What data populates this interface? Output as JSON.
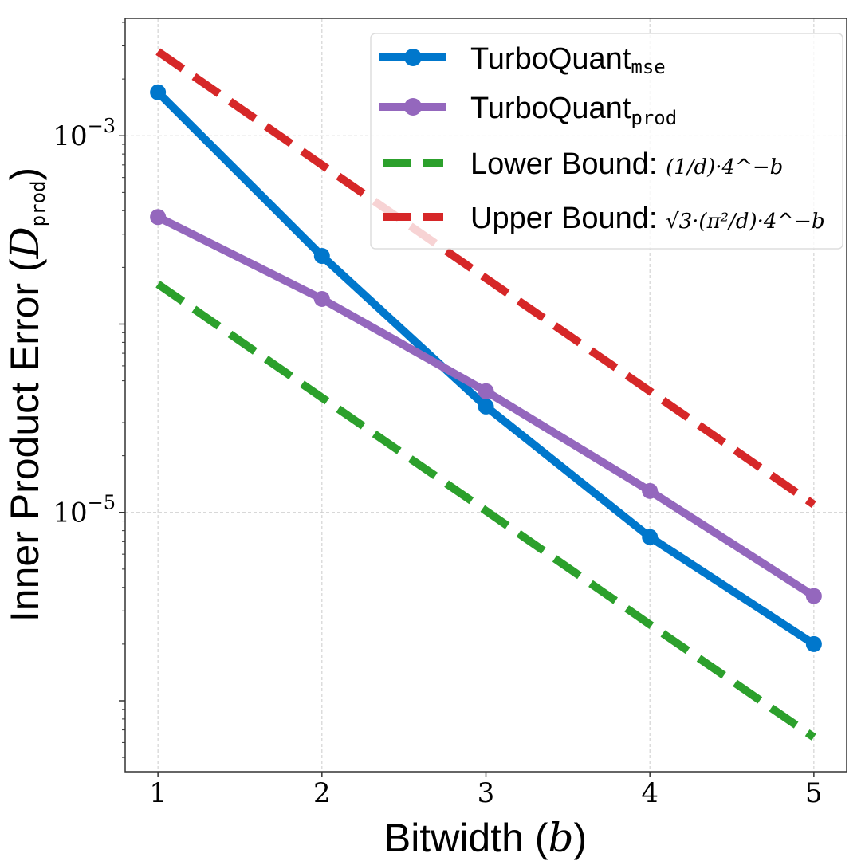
{
  "chart_data": {
    "type": "line",
    "title": "",
    "xlabel": "Bitwidth (b)",
    "xlabel_text": "Bitwidth (",
    "xlabel_var": "b",
    "ylabel_text": "Inner Product Error (",
    "ylabel_var": "D",
    "ylabel_sub": "prod",
    "x": [
      1,
      2,
      3,
      4,
      5
    ],
    "xlim": [
      0.8,
      5.2
    ],
    "ylim": [
      4.2e-07,
      0.0042
    ],
    "yscale": "log",
    "grid": true,
    "xticks": [
      "1",
      "2",
      "3",
      "4",
      "5"
    ],
    "yticks": [
      {
        "value": 0.001,
        "base": "10",
        "exp": "−3"
      },
      {
        "value": 1e-05,
        "base": "10",
        "exp": "−5"
      }
    ],
    "legend_position": "top-right",
    "series": [
      {
        "name": "TurboQuant",
        "sub": "mse",
        "color": "#0077cc",
        "style": "solid",
        "marker": "circle",
        "values": [
          0.0017,
          0.00023,
          3.65e-05,
          7.4e-06,
          2e-06
        ]
      },
      {
        "name": "TurboQuant",
        "sub": "prod",
        "color": "#9467bd",
        "style": "solid",
        "marker": "circle",
        "values": [
          0.00037,
          0.000136,
          4.4e-05,
          1.3e-05,
          3.6e-06
        ]
      },
      {
        "name": "Lower Bound: ",
        "formula": "(1/d)·4^−b",
        "color": "#2ca02c",
        "style": "dashed",
        "marker": "none",
        "values": [
          0.000163,
          4.07e-05,
          1.02e-05,
          2.54e-06,
          6.4e-07
        ]
      },
      {
        "name": "Upper Bound: ",
        "formula": "√3·(π²/d)·4^−b",
        "color": "#d62728",
        "style": "dashed",
        "marker": "none",
        "values": [
          0.0028,
          0.0007,
          0.000175,
          4.4e-05,
          1.1e-05
        ]
      }
    ]
  }
}
